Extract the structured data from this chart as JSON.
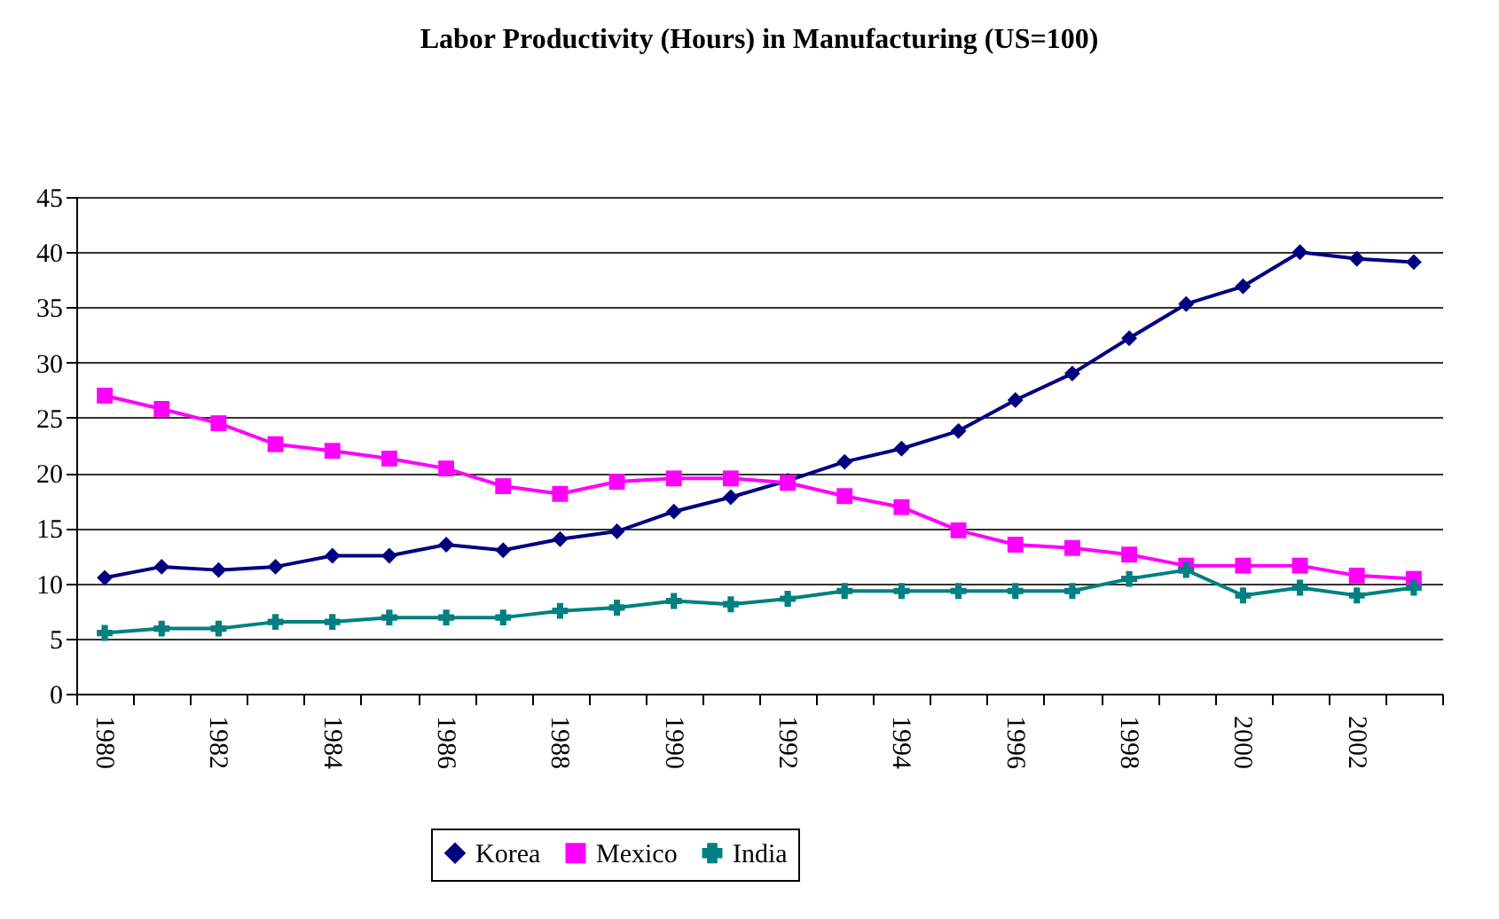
{
  "chart_data": {
    "type": "line",
    "title": "Labor Productivity (Hours)  in Manufacturing (US=100)",
    "categories": [
      "1980",
      null,
      "1982",
      null,
      "1984",
      null,
      "1986",
      null,
      "1988",
      null,
      "1990",
      null,
      "1992",
      null,
      "1994",
      null,
      "1996",
      null,
      "1998",
      null,
      "2000",
      null,
      "2002",
      null
    ],
    "series": [
      {
        "name": "Korea",
        "color": "#000080",
        "marker": "diamond",
        "values": [
          10.5,
          11.5,
          11.2,
          11.5,
          12.5,
          12.5,
          13.5,
          13,
          14,
          14.7,
          16.5,
          17.8,
          19.3,
          21,
          22.2,
          23.8,
          26.6,
          29,
          32.2,
          35.3,
          36.9,
          40,
          39.4,
          39.1
        ]
      },
      {
        "name": "Mexico",
        "color": "#ff00ff",
        "marker": "square",
        "values": [
          27,
          25.8,
          24.5,
          22.6,
          22,
          21.3,
          20.4,
          18.8,
          18.1,
          19.2,
          19.5,
          19.5,
          19.1,
          17.9,
          16.9,
          14.8,
          13.5,
          13.2,
          12.6,
          11.6,
          11.6,
          11.6,
          10.7,
          10.4
        ]
      },
      {
        "name": "India",
        "color": "#008080",
        "marker": "cross",
        "values": [
          5.5,
          5.9,
          5.9,
          6.5,
          6.5,
          6.9,
          6.9,
          6.9,
          7.5,
          7.8,
          8.4,
          8.1,
          8.6,
          9.3,
          9.3,
          9.3,
          9.3,
          9.3,
          10.4,
          11.2,
          8.9,
          9.6,
          8.9,
          9.6
        ]
      }
    ],
    "ylim": [
      0,
      45
    ],
    "yticks": [
      0,
      5,
      10,
      15,
      20,
      25,
      30,
      35,
      40,
      45
    ],
    "grid": "y",
    "legend": "bottom",
    "line_style": "solid"
  }
}
